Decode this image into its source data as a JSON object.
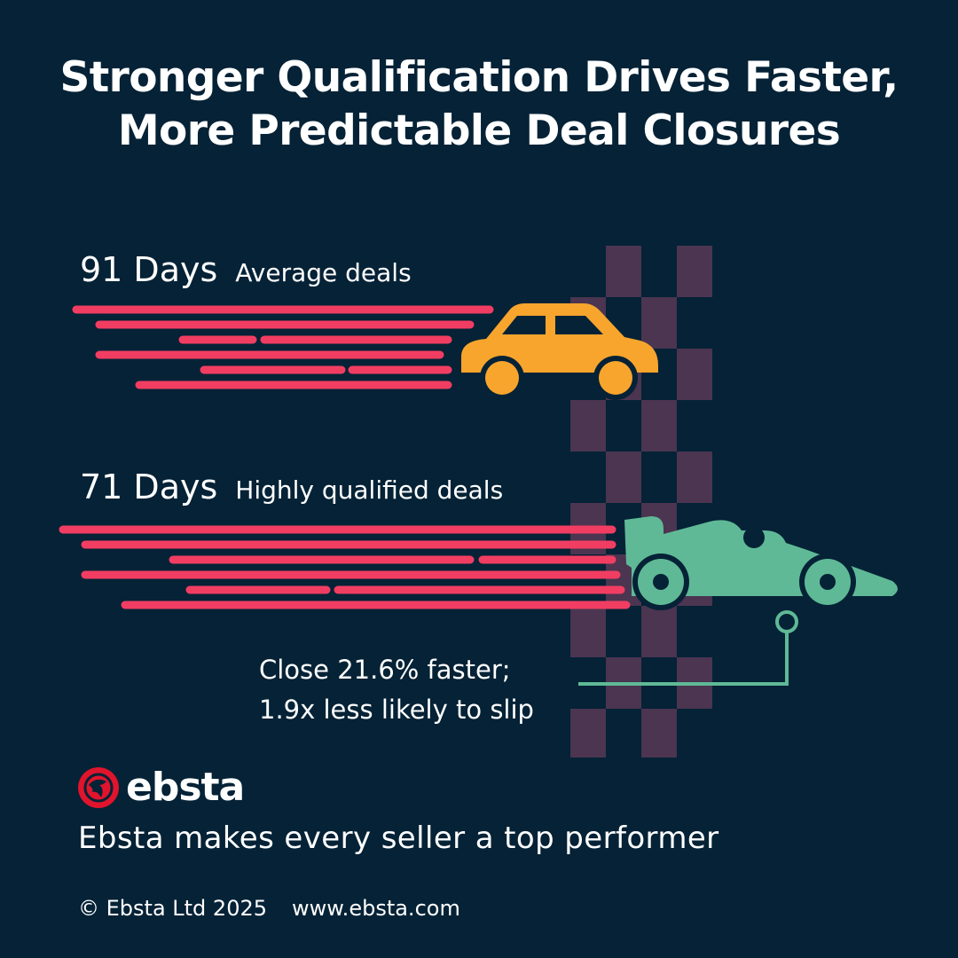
{
  "title": {
    "line1": "Stronger Qualification Drives Faster,",
    "line2": "More Predictable Deal Closures"
  },
  "rows": [
    {
      "days": "91 Days",
      "label": "Average deals",
      "vehicle": "car-icon"
    },
    {
      "days": "71 Days",
      "label": "Highly qualified deals",
      "vehicle": "race-car-icon"
    }
  ],
  "callout": {
    "line1": "Close 21.6% faster;",
    "line2": "1.9x less likely to slip"
  },
  "brand": {
    "logo": "ebsta-logo",
    "name": "ebsta",
    "tagline": "Ebsta makes every seller a top performer"
  },
  "footer": {
    "copyright": "© Ebsta Ltd 2025",
    "website": "www.ebsta.com"
  },
  "colors": {
    "background": "#052236",
    "speed_lines": "#f23d62",
    "car": "#f7a52d",
    "race_car": "#5fb996",
    "checker": "#4b3551",
    "logo": "#e0142c"
  }
}
